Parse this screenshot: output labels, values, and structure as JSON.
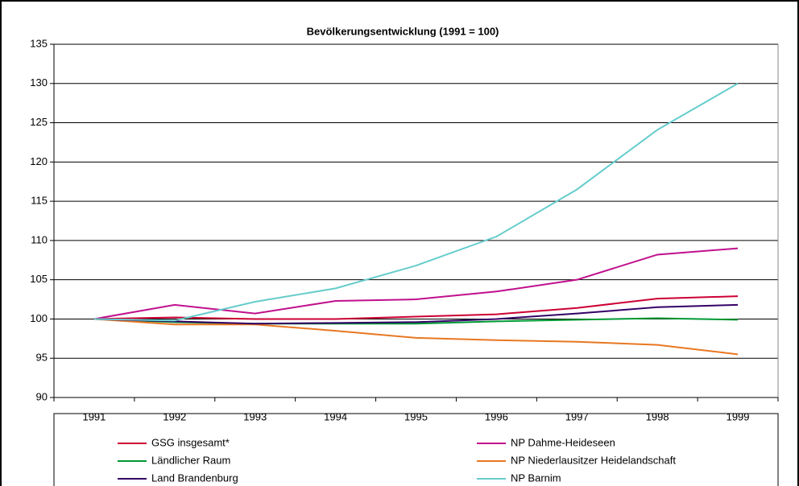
{
  "chart_data": {
    "type": "line",
    "title": "Bevölkerungsentwicklung (1991 = 100)",
    "categories": [
      "1991",
      "1992",
      "1993",
      "1994",
      "1995",
      "1996",
      "1997",
      "1998",
      "1999"
    ],
    "series": [
      {
        "name": "GSG insgesamt*",
        "color": "#cc0033",
        "values": [
          100,
          100.2,
          100.0,
          100.0,
          100.3,
          100.6,
          101.4,
          102.6,
          102.9
        ]
      },
      {
        "name": "NP Dahme-Heideseen",
        "color": "#c0108c",
        "values": [
          100,
          101.8,
          100.7,
          102.3,
          102.5,
          103.5,
          105.0,
          108.2,
          109.0
        ]
      },
      {
        "name": "Ländlicher Raum",
        "color": "#009933",
        "values": [
          100,
          99.6,
          99.4,
          99.4,
          99.4,
          99.7,
          99.9,
          100.1,
          99.9
        ]
      },
      {
        "name": "NP Niederlausitzer Heidelandschaft",
        "color": "#e87722",
        "values": [
          100,
          99.3,
          99.3,
          98.5,
          97.6,
          97.3,
          97.1,
          96.7,
          95.5
        ]
      },
      {
        "name": "Land Brandenburg",
        "color": "#330066",
        "values": [
          100,
          99.7,
          99.4,
          99.5,
          99.6,
          100.0,
          100.7,
          101.5,
          101.8
        ]
      },
      {
        "name": "NP Barnim",
        "color": "#66cccc",
        "values": [
          100,
          99.8,
          102.2,
          103.9,
          106.8,
          110.5,
          116.5,
          124.1,
          130.0
        ]
      }
    ],
    "ylim": [
      90,
      135
    ],
    "yticks": [
      90,
      95,
      100,
      105,
      110,
      115,
      120,
      125,
      130,
      135
    ],
    "grid": true
  }
}
